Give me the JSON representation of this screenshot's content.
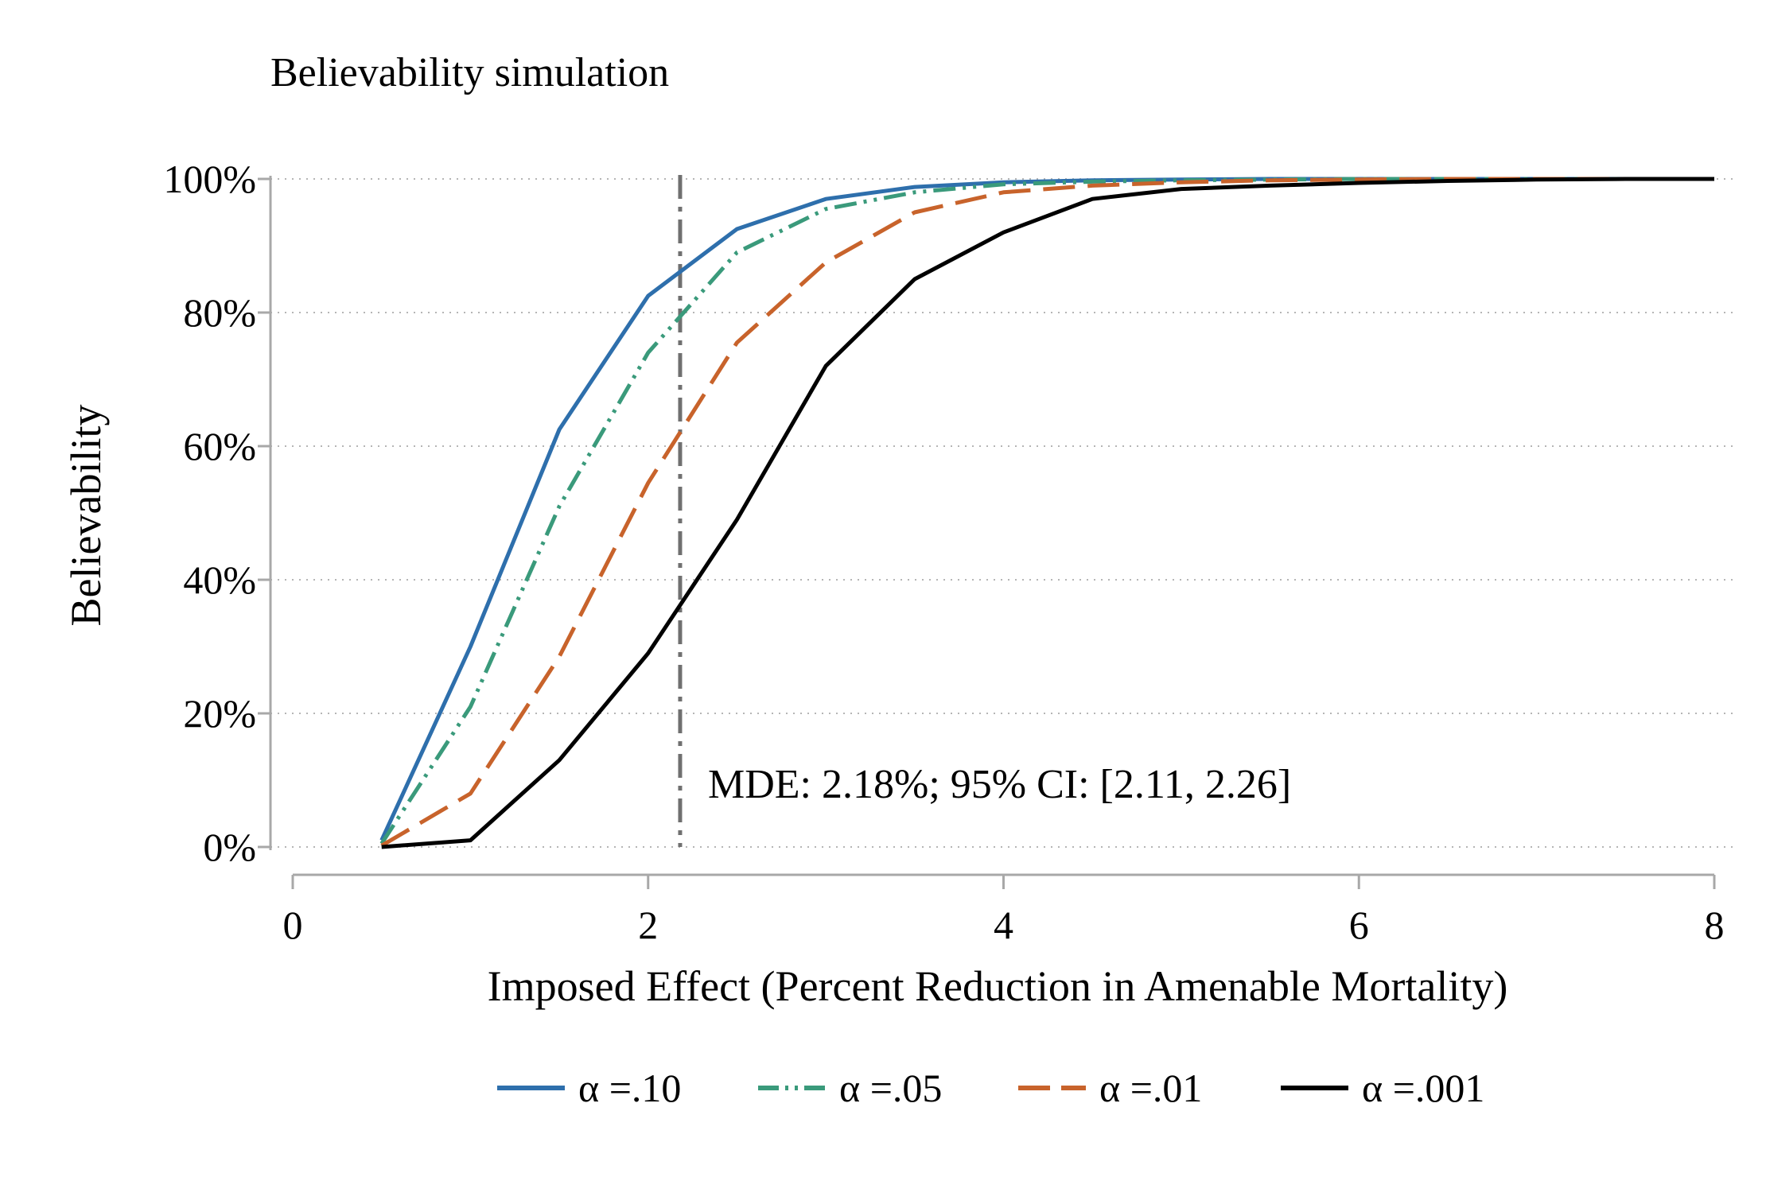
{
  "chart_data": {
    "type": "line",
    "title": "Believability simulation",
    "xlabel": "Imposed Effect (Percent Reduction in Amenable Mortality)",
    "ylabel": "Believability",
    "xlim": [
      0,
      8
    ],
    "ylim": [
      0,
      100
    ],
    "x_ticks": [
      0,
      2,
      4,
      6,
      8
    ],
    "x_tick_labels": [
      "0",
      "2",
      "4",
      "6",
      "8"
    ],
    "y_ticks": [
      0,
      20,
      40,
      60,
      80,
      100
    ],
    "y_tick_labels": [
      "0%",
      "20%",
      "40%",
      "60%",
      "80%",
      "100%"
    ],
    "grid": "horizontal dotted",
    "legend_position": "bottom",
    "series": [
      {
        "name": "α =.10",
        "color": "#2e6fac",
        "dash": "solid",
        "x": [
          0.5,
          1,
          1.5,
          2,
          2.5,
          3,
          3.5,
          4,
          4.5,
          5,
          5.5,
          6,
          6.5,
          7,
          7.5,
          8
        ],
        "y": [
          1,
          30,
          62.5,
          82.5,
          92.5,
          97,
          98.8,
          99.5,
          99.8,
          99.9,
          100,
          100,
          100,
          100,
          100,
          100
        ]
      },
      {
        "name": "α =.05",
        "color": "#3a9a7b",
        "dash": "dashdot",
        "x": [
          0.5,
          1,
          1.5,
          2,
          2.5,
          3,
          3.5,
          4,
          4.5,
          5,
          5.5,
          6,
          6.5,
          7,
          7.5,
          8
        ],
        "y": [
          0.5,
          21,
          51,
          74,
          89,
          95.5,
          98,
          99.2,
          99.6,
          99.8,
          99.9,
          100,
          100,
          100,
          100,
          100
        ]
      },
      {
        "name": "α =.01",
        "color": "#c8632b",
        "dash": "longdash",
        "x": [
          0.5,
          1,
          1.5,
          2,
          2.5,
          3,
          3.5,
          4,
          4.5,
          5,
          5.5,
          6,
          6.5,
          7,
          7.5,
          8
        ],
        "y": [
          0.2,
          8,
          28.5,
          54.5,
          75.5,
          87.5,
          95,
          98,
          99,
          99.5,
          99.8,
          99.9,
          100,
          100,
          100,
          100
        ]
      },
      {
        "name": "α =.001",
        "color": "#000000",
        "dash": "solid",
        "x": [
          0.5,
          1,
          1.5,
          2,
          2.5,
          3,
          3.5,
          4,
          4.5,
          5,
          5.5,
          6,
          6.5,
          7,
          7.5,
          8
        ],
        "y": [
          0,
          1,
          13,
          29,
          49,
          72,
          85,
          92,
          97,
          98.5,
          99,
          99.4,
          99.7,
          99.9,
          100,
          100
        ]
      }
    ],
    "reference_line": {
      "x": 2.18,
      "color": "#707070",
      "dash": "longdash-dot",
      "label": "MDE: 2.18%; 95% CI: [2.11, 2.26]"
    }
  }
}
